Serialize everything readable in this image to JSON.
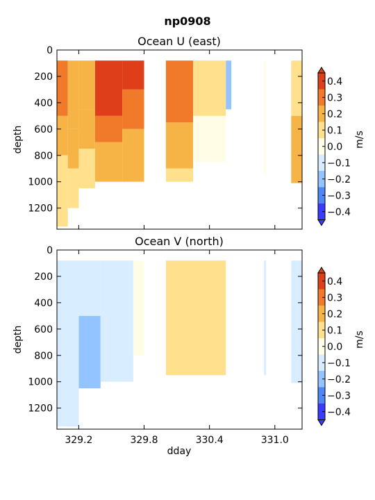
{
  "figure_title": "np0908",
  "colorbar": {
    "unit_label": "m/s",
    "levels": [
      -0.4,
      -0.3,
      -0.2,
      -0.1,
      0.0,
      0.1,
      0.2,
      0.3,
      0.4
    ],
    "tick_labels": [
      "−0.4",
      "−0.3",
      "−0.2",
      "−0.1",
      "0.0",
      "0.1",
      "0.2",
      "0.3",
      "0.4"
    ],
    "colors": [
      "#3b3bff",
      "#4f86f7",
      "#94c4ff",
      "#d8edff",
      "#fffde6",
      "#ffe08c",
      "#f7b446",
      "#f07a2a",
      "#de3f1a"
    ],
    "extend": "both"
  },
  "chart_data": [
    {
      "type": "heatmap",
      "title": "Ocean U (east)",
      "xlabel": "",
      "ylabel": "depth",
      "xlim": [
        329.0,
        331.25
      ],
      "ylim": [
        1360,
        0
      ],
      "xticks": [
        329.2,
        329.8,
        330.4,
        331.0
      ],
      "xtick_labels": [
        "",
        "",
        "",
        ""
      ],
      "yticks": [
        0,
        200,
        400,
        600,
        800,
        1000,
        1200
      ],
      "ytick_labels": [
        "0",
        "200",
        "400",
        "600",
        "800",
        "1000",
        "1200"
      ],
      "data_depth_range": [
        80,
        1340
      ],
      "field": [
        {
          "dday": [
            329.0,
            329.1
          ],
          "depth_bottom": 1340,
          "bins": [
            {
              "from": 80,
              "to": 500,
              "u": 0.3
            },
            {
              "from": 500,
              "to": 800,
              "u": 0.2
            },
            {
              "from": 800,
              "to": 1340,
              "u": 0.1
            }
          ]
        },
        {
          "dday": [
            329.1,
            329.2
          ],
          "depth_bottom": 1200,
          "bins": [
            {
              "from": 80,
              "to": 600,
              "u": 0.2
            },
            {
              "from": 600,
              "to": 900,
              "u": 0.2
            },
            {
              "from": 900,
              "to": 1200,
              "u": 0.1
            }
          ]
        },
        {
          "dday": [
            329.2,
            329.35
          ],
          "depth_bottom": 1050,
          "bins": [
            {
              "from": 80,
              "to": 450,
              "u": 0.2
            },
            {
              "from": 450,
              "to": 750,
              "u": 0.2
            },
            {
              "from": 750,
              "to": 1050,
              "u": 0.1
            }
          ]
        },
        {
          "dday": [
            329.35,
            329.6
          ],
          "depth_bottom": 1000,
          "bins": [
            {
              "from": 80,
              "to": 500,
              "u": 0.4
            },
            {
              "from": 500,
              "to": 700,
              "u": 0.3
            },
            {
              "from": 700,
              "to": 1000,
              "u": 0.2
            }
          ]
        },
        {
          "dday": [
            329.6,
            329.8
          ],
          "depth_bottom": 1000,
          "bins": [
            {
              "from": 80,
              "to": 300,
              "u": 0.4
            },
            {
              "from": 300,
              "to": 600,
              "u": 0.3
            },
            {
              "from": 600,
              "to": 1000,
              "u": 0.2
            }
          ]
        },
        {
          "dday": [
            330.0,
            330.25
          ],
          "depth_bottom": 1000,
          "bins": [
            {
              "from": 80,
              "to": 550,
              "u": 0.3
            },
            {
              "from": 550,
              "to": 900,
              "u": 0.2
            },
            {
              "from": 900,
              "to": 1000,
              "u": 0.1
            }
          ]
        },
        {
          "dday": [
            330.25,
            330.55
          ],
          "depth_bottom": 850,
          "bins": [
            {
              "from": 80,
              "to": 500,
              "u": 0.1
            },
            {
              "from": 500,
              "to": 850,
              "u": 0.0
            }
          ]
        },
        {
          "dday": [
            330.55,
            330.6
          ],
          "depth_bottom": 450,
          "bins": [
            {
              "from": 80,
              "to": 450,
              "u": -0.2
            }
          ]
        },
        {
          "dday": [
            330.9,
            330.92
          ],
          "depth_bottom": 940,
          "bins": [
            {
              "from": 80,
              "to": 940,
              "u": 0.0
            }
          ]
        },
        {
          "dday": [
            331.15,
            331.25
          ],
          "depth_bottom": 1010,
          "bins": [
            {
              "from": 80,
              "to": 500,
              "u": 0.1
            },
            {
              "from": 500,
              "to": 1010,
              "u": 0.2
            }
          ]
        }
      ]
    },
    {
      "type": "heatmap",
      "title": "Ocean V (north)",
      "xlabel": "dday",
      "ylabel": "depth",
      "xlim": [
        329.0,
        331.25
      ],
      "ylim": [
        1360,
        0
      ],
      "xticks": [
        329.2,
        329.8,
        330.4,
        331.0
      ],
      "xtick_labels": [
        "329.2",
        "329.8",
        "330.4",
        "331.0"
      ],
      "yticks": [
        0,
        200,
        400,
        600,
        800,
        1000,
        1200
      ],
      "ytick_labels": [
        "0",
        "200",
        "400",
        "600",
        "800",
        "1000",
        "1200"
      ],
      "data_depth_range": [
        80,
        1340
      ],
      "field": [
        {
          "dday": [
            329.0,
            329.2
          ],
          "depth_bottom": 1340,
          "bins": [
            {
              "from": 80,
              "to": 1340,
              "u": -0.1
            }
          ]
        },
        {
          "dday": [
            329.2,
            329.4
          ],
          "depth_bottom": 1050,
          "bins": [
            {
              "from": 80,
              "to": 500,
              "u": -0.1
            },
            {
              "from": 500,
              "to": 1050,
              "u": -0.2
            }
          ]
        },
        {
          "dday": [
            329.4,
            329.7
          ],
          "depth_bottom": 1000,
          "bins": [
            {
              "from": 80,
              "to": 1000,
              "u": -0.1
            }
          ]
        },
        {
          "dday": [
            329.7,
            329.8
          ],
          "depth_bottom": 800,
          "bins": [
            {
              "from": 80,
              "to": 800,
              "u": 0.0
            }
          ]
        },
        {
          "dday": [
            330.0,
            330.55
          ],
          "depth_bottom": 950,
          "bins": [
            {
              "from": 80,
              "to": 950,
              "u": 0.1
            }
          ]
        },
        {
          "dday": [
            330.9,
            330.92
          ],
          "depth_bottom": 950,
          "bins": [
            {
              "from": 80,
              "to": 950,
              "u": -0.1
            }
          ]
        },
        {
          "dday": [
            331.15,
            331.25
          ],
          "depth_bottom": 1010,
          "bins": [
            {
              "from": 80,
              "to": 1010,
              "u": -0.1
            }
          ]
        }
      ]
    }
  ]
}
